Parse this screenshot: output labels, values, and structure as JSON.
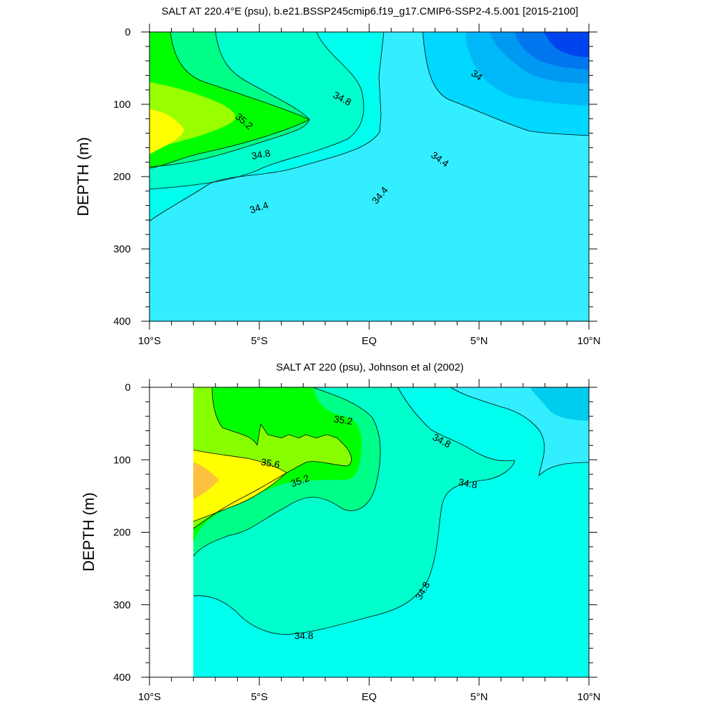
{
  "chart_data": [
    {
      "type": "contour",
      "title": "SALT AT 220.4°E (psu), b.e21.BSSP245cmip6.f19_g17.CMIP6-SSP2-4.5.001 [2015-2100]",
      "xlabel": "",
      "ylabel": "DEPTH (m)",
      "xticks": [
        "10°S",
        "5°S",
        "EQ",
        "5°N",
        "10°N"
      ],
      "yticks": [
        "0",
        "100",
        "200",
        "300",
        "400"
      ],
      "xlim": [
        -10,
        10
      ],
      "ylim": [
        400,
        0
      ],
      "contour_interval": 0.2,
      "contour_labels": [
        "34.8",
        "35.2",
        "34.8",
        "34.4",
        "34.4",
        "34.4",
        "34"
      ],
      "colors": {
        "33.2": "#0000ff",
        "33.4": "#0044f0",
        "33.6": "#0077ee",
        "33.8": "#0099f2",
        "34.0": "#00b8f8",
        "34.2": "#00d8ff",
        "34.4": "#33eeff",
        "34.6": "#00ffee",
        "34.8": "#00ffcc",
        "35.0": "#00ff88",
        "35.2": "#00ff00",
        "35.4": "#66ff00",
        "35.6": "#99ff00",
        "35.8": "#ffff00"
      }
    },
    {
      "type": "contour",
      "title": "SALT AT 220 (psu), Johnson et al (2002)",
      "xlabel": "",
      "ylabel": "DEPTH (m)",
      "xticks": [
        "10°S",
        "5°S",
        "EQ",
        "5°N",
        "10°N"
      ],
      "yticks": [
        "0",
        "100",
        "200",
        "300",
        "400"
      ],
      "xlim": [
        -10,
        10
      ],
      "ylim": [
        400,
        0
      ],
      "data_extent_x": [
        -8,
        10
      ],
      "contour_interval": 0.2,
      "contour_labels": [
        "35.2",
        "35.6",
        "35.2",
        "34.8",
        "34.8",
        "34.8",
        "34.8"
      ],
      "colors": {
        "34.2": "#00ccee",
        "34.4": "#33eeff",
        "34.6": "#00ffee",
        "34.8": "#00ffcc",
        "35.0": "#00ff88",
        "35.2": "#00ff00",
        "35.4": "#88ff00",
        "35.6": "#ffff00",
        "35.8": "#ffc040"
      }
    }
  ]
}
